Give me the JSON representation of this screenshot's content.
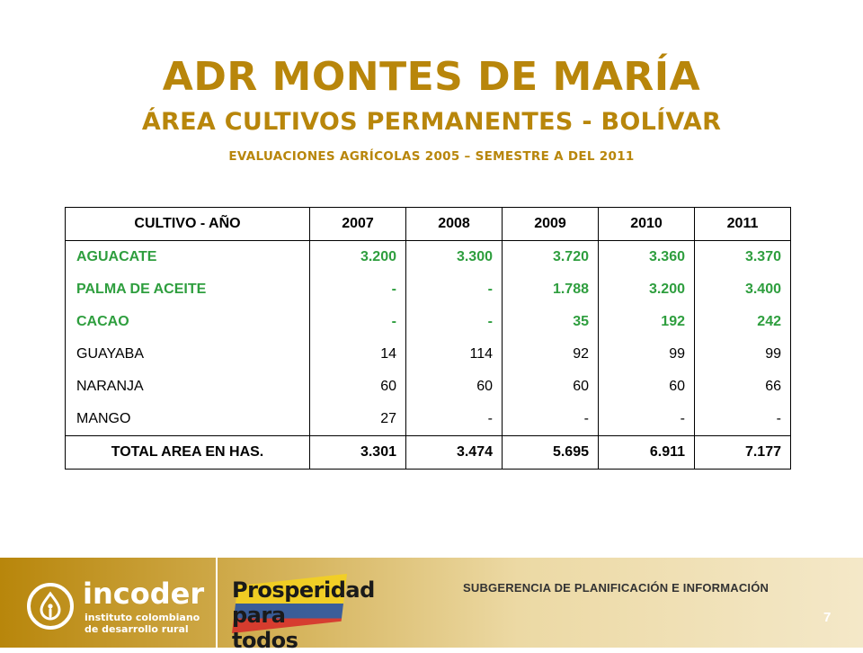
{
  "title": {
    "main": "ADR MONTES DE MARÍA",
    "sub": "ÁREA CULTIVOS PERMANENTES - BOLÍVAR",
    "note": "EVALUACIONES AGRÍCOLAS 2005 – SEMESTRE A DEL 2011"
  },
  "table": {
    "headers": [
      "CULTIVO  - AÑO",
      "2007",
      "2008",
      "2009",
      "2010",
      "2011"
    ],
    "rows": [
      {
        "name": "AGUACATE",
        "values": [
          "3.200",
          "3.300",
          "3.720",
          "3.360",
          "3.370"
        ]
      },
      {
        "name": "PALMA DE ACEITE",
        "values": [
          "-",
          "-",
          "1.788",
          "3.200",
          "3.400"
        ]
      },
      {
        "name": "CACAO",
        "values": [
          "-",
          "-",
          "35",
          "192",
          "242"
        ]
      },
      {
        "name": "GUAYABA",
        "values": [
          "14",
          "114",
          "92",
          "99",
          "99"
        ]
      },
      {
        "name": "NARANJA",
        "values": [
          "60",
          "60",
          "60",
          "60",
          "66"
        ]
      },
      {
        "name": "MANGO",
        "values": [
          "27",
          "-",
          "-",
          "-",
          "-"
        ]
      }
    ],
    "total": {
      "name": "TOTAL AREA EN HAS.",
      "values": [
        "3.301",
        "3.474",
        "5.695",
        "6.911",
        "7.177"
      ]
    }
  },
  "footer": {
    "incoder_word": "incoder",
    "incoder_sub1": "instituto colombiano",
    "incoder_sub2": "de desarrollo rural",
    "prosperidad_line1": "Prosperidad",
    "prosperidad_line2": "para todos",
    "subgerencia": "SUBGERENCIA DE PLANIFICACIÓN E INFORMACIÓN",
    "page_number": "7"
  },
  "colors": {
    "title": "#b8860b",
    "green_rows": "#2e9e3e",
    "footer_gradient_start": "#b8860b",
    "footer_gradient_end": "#f4e8c8"
  }
}
